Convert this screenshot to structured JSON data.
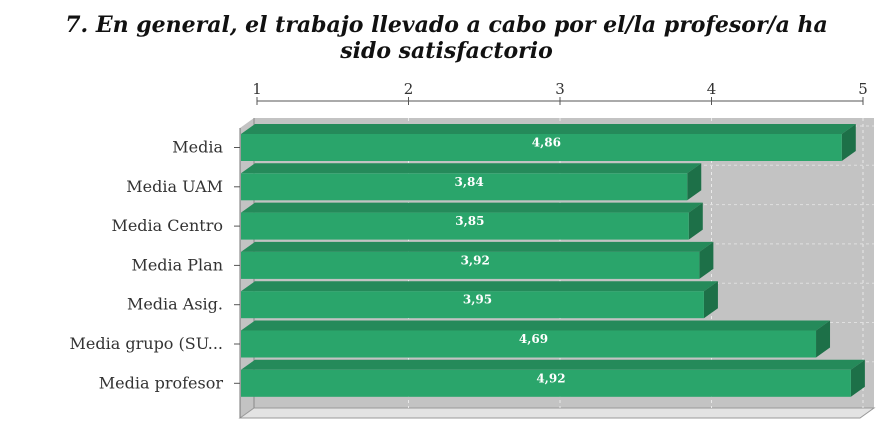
{
  "chart_data": {
    "type": "bar",
    "orientation": "horizontal",
    "title_line1": "7. En general, el trabajo llevado a cabo por el/la profesor/a ha",
    "title_line2": "sido satisfactorio",
    "categories": [
      "Media",
      "Media UAM",
      "Media Centro",
      "Media Plan",
      "Media Asig.",
      "Media grupo (SU...",
      "Media profesor"
    ],
    "values": [
      4.86,
      3.84,
      3.85,
      3.92,
      3.95,
      4.69,
      4.92
    ],
    "value_labels": [
      "4,86",
      "3,84",
      "3,85",
      "3,92",
      "3,95",
      "4,69",
      "4,92"
    ],
    "xticks": [
      "1",
      "2",
      "3",
      "4",
      "5"
    ],
    "xlim": [
      1,
      5
    ],
    "axis_position": "top",
    "grid": true,
    "bar_color": "#2aa56b",
    "bar_top_color": "#258a5a",
    "bar_side_color": "#1d7048",
    "plot_bg_color": "#c3c3c3"
  }
}
